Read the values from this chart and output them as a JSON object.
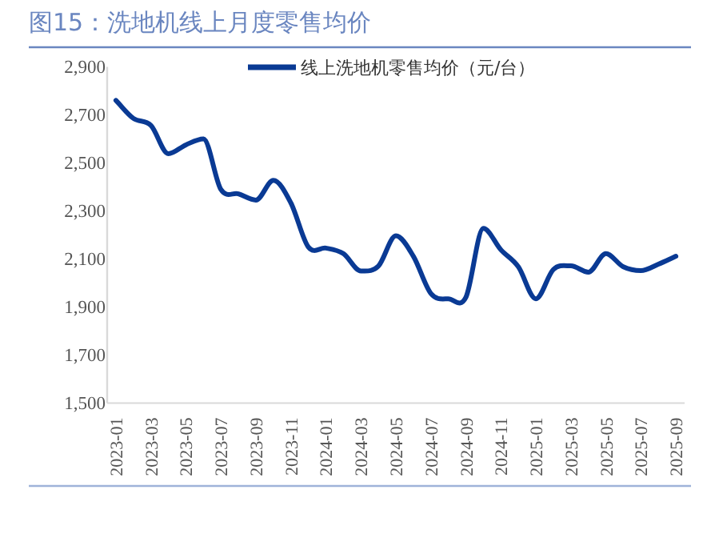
{
  "chart_data": {
    "type": "line",
    "title": "图15：洗地机线上月度零售均价",
    "categories": [
      "2023-01",
      null,
      "2023-03",
      null,
      "2023-05",
      null,
      "2023-07",
      null,
      "2023-09",
      null,
      "2023-11",
      null,
      "2024-01",
      null,
      "2024-03",
      null,
      "2024-05",
      null,
      "2024-07",
      null,
      "2024-09",
      null,
      "2024-11",
      null,
      "2025-01",
      null,
      "2025-03",
      null,
      "2025-05",
      null,
      "2025-07",
      null,
      "2025-09"
    ],
    "series": [
      {
        "name": "线上洗地机零售均价（元/台）",
        "color": "#0a3a94",
        "values": [
          2760,
          2685,
          2656,
          2538,
          2575,
          2600,
          2389,
          2371,
          2345,
          2427,
          2333,
          2149,
          2145,
          2122,
          2050,
          2070,
          2196,
          2111,
          1956,
          1934,
          1940,
          2227,
          2138,
          2067,
          1934,
          2056,
          2071,
          2045,
          2122,
          2067,
          2051,
          2078,
          2111
        ]
      }
    ],
    "ylim": [
      1500,
      2900
    ],
    "yticks": [
      {
        "value": 1500,
        "label": "1,500"
      },
      {
        "value": 1700,
        "label": "1,700"
      },
      {
        "value": 1900,
        "label": "1,900"
      },
      {
        "value": 2100,
        "label": "2,100"
      },
      {
        "value": 2300,
        "label": "2,300"
      },
      {
        "value": 2500,
        "label": "2,500"
      },
      {
        "value": 2700,
        "label": "2,700"
      },
      {
        "value": 2900,
        "label": "2,900"
      }
    ],
    "legend": "top",
    "grid": false,
    "marker": "none",
    "line_style": "solid"
  }
}
